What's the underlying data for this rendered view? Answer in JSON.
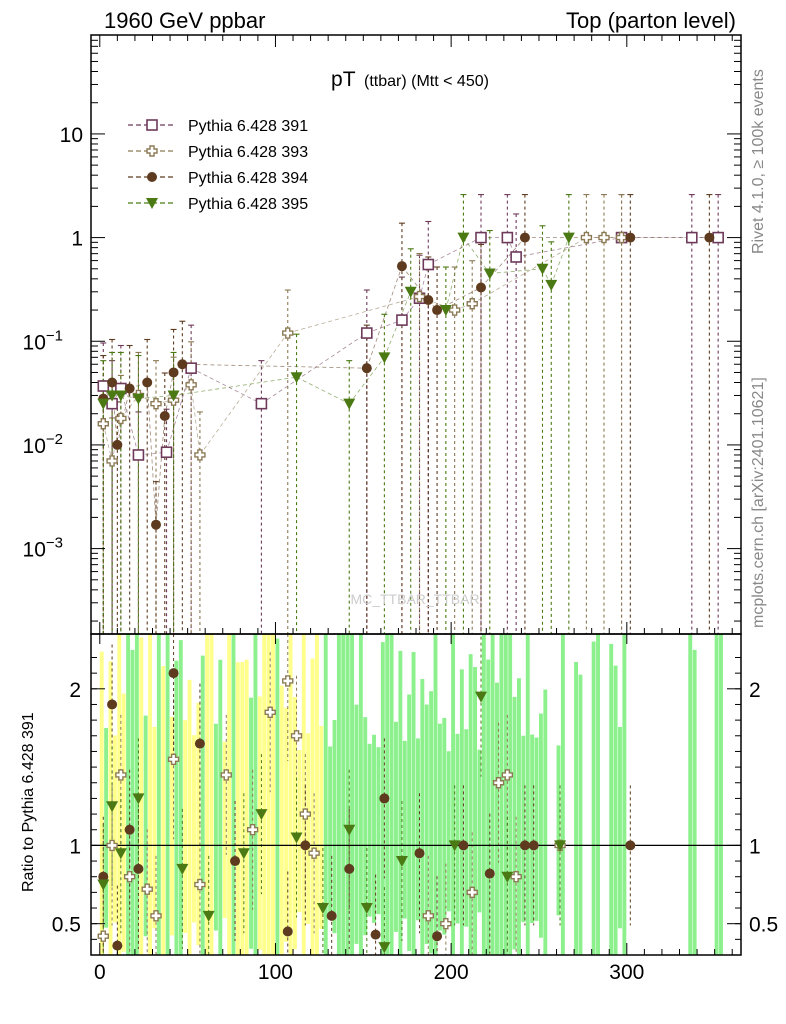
{
  "header": {
    "left": "1960 GeV ppbar",
    "right": "Top (parton level)"
  },
  "side": {
    "rivet": "Rivet 4.1.0, ≥ 100k events",
    "mcplots": "mcplots.cern.ch [arXiv:2401.10621]"
  },
  "watermark": "MC_TTBAR_TTBAR",
  "ratio_ylabel": "Ratio to Pythia 6.428 391",
  "colors": {
    "s391": "#6e3a5a",
    "s393": "#8c7a55",
    "s394": "#5e3b1f",
    "s395": "#4b7a14",
    "band_yellow": "#ffff8c",
    "band_green": "#8cf08c"
  },
  "chart_data": {
    "type": "scatter",
    "title_main": "pT",
    "title_sub": "(ttbar) (Mtt < 450)",
    "xlabel": "",
    "ylabel": "",
    "xlim": [
      -5,
      365
    ],
    "ylim": [
      0.00015,
      90
    ],
    "yscale": "log",
    "x_ticks": [
      0,
      100,
      200,
      300
    ],
    "y_ticks": [
      {
        "value": 0.001,
        "label": "10",
        "exp": "−3"
      },
      {
        "value": 0.01,
        "label": "10",
        "exp": "−2"
      },
      {
        "value": 0.1,
        "label": "10",
        "exp": "−1"
      },
      {
        "value": 1,
        "label": "1",
        "exp": ""
      },
      {
        "value": 10,
        "label": "10",
        "exp": ""
      }
    ],
    "ratio_ylim": [
      0.3,
      2.35
    ],
    "ratio_ticks": [
      0.5,
      1,
      2
    ],
    "series": [
      {
        "name": "Pythia 6.428 391",
        "marker": "open-square",
        "color": "#6e3a5a",
        "points": [
          [
            2,
            0.037
          ],
          [
            7,
            0.025
          ],
          [
            12,
            0.035
          ],
          [
            22,
            0.008
          ],
          [
            38,
            0.0085
          ],
          [
            52,
            0.055
          ],
          [
            92,
            0.025
          ],
          [
            152,
            0.12
          ],
          [
            172,
            0.16
          ],
          [
            182,
            0.26
          ],
          [
            187,
            0.55
          ],
          [
            217,
            1.0
          ],
          [
            232,
            1.0
          ],
          [
            237,
            0.65
          ],
          [
            297,
            1.0
          ],
          [
            337,
            1.0
          ],
          [
            352,
            1.0
          ]
        ]
      },
      {
        "name": "Pythia 6.428 393",
        "marker": "open-cross",
        "color": "#8c7a55",
        "points": [
          [
            2,
            0.016
          ],
          [
            7,
            0.007
          ],
          [
            12,
            0.018
          ],
          [
            22,
            0.03
          ],
          [
            32,
            0.025
          ],
          [
            42,
            0.027
          ],
          [
            52,
            0.038
          ],
          [
            57,
            0.008
          ],
          [
            107,
            0.12
          ],
          [
            182,
            0.27
          ],
          [
            202,
            0.2
          ],
          [
            212,
            0.23
          ],
          [
            277,
            1.0
          ],
          [
            287,
            1.0
          ],
          [
            297,
            1.0
          ]
        ]
      },
      {
        "name": "Pythia 6.428 394",
        "marker": "filled-circle",
        "color": "#5e3b1f",
        "points": [
          [
            2,
            0.028
          ],
          [
            7,
            0.04
          ],
          [
            10,
            0.01
          ],
          [
            17,
            0.035
          ],
          [
            27,
            0.04
          ],
          [
            32,
            0.0017
          ],
          [
            37,
            0.019
          ],
          [
            42,
            0.05
          ],
          [
            47,
            0.06
          ],
          [
            152,
            0.055
          ],
          [
            172,
            0.53
          ],
          [
            187,
            0.25
          ],
          [
            192,
            0.2
          ],
          [
            217,
            0.33
          ],
          [
            242,
            1.0
          ],
          [
            302,
            1.0
          ],
          [
            347,
            1.0
          ]
        ]
      },
      {
        "name": "Pythia 6.428 395",
        "marker": "filled-triangle",
        "color": "#4b7a14",
        "points": [
          [
            2,
            0.025
          ],
          [
            7,
            0.03
          ],
          [
            12,
            0.03
          ],
          [
            22,
            0.028
          ],
          [
            42,
            0.03
          ],
          [
            112,
            0.045
          ],
          [
            142,
            0.025
          ],
          [
            162,
            0.07
          ],
          [
            177,
            0.3
          ],
          [
            197,
            0.2
          ],
          [
            207,
            1.0
          ],
          [
            222,
            0.45
          ],
          [
            252,
            0.5
          ],
          [
            257,
            0.35
          ],
          [
            267,
            1.0
          ]
        ]
      }
    ],
    "ratio_series": [
      {
        "name": "Pythia 6.428 393",
        "points": [
          [
            2,
            0.42
          ],
          [
            7,
            1.0
          ],
          [
            12,
            1.45
          ],
          [
            17,
            0.8
          ],
          [
            27,
            0.72
          ],
          [
            32,
            0.55
          ],
          [
            42,
            1.55
          ],
          [
            57,
            0.75
          ],
          [
            72,
            1.45
          ],
          [
            87,
            1.1
          ],
          [
            97,
            1.85
          ],
          [
            107,
            2.05
          ],
          [
            112,
            1.7
          ],
          [
            117,
            1.2
          ],
          [
            122,
            0.95
          ],
          [
            187,
            0.55
          ],
          [
            197,
            0.5
          ],
          [
            212,
            0.7
          ],
          [
            227,
            1.4
          ],
          [
            232,
            1.45
          ],
          [
            237,
            0.8
          ],
          [
            262,
            1.0
          ]
        ]
      },
      {
        "name": "Pythia 6.428 394",
        "points": [
          [
            2,
            0.8
          ],
          [
            7,
            1.9
          ],
          [
            10,
            0.36
          ],
          [
            17,
            1.1
          ],
          [
            22,
            0.85
          ],
          [
            42,
            2.1
          ],
          [
            57,
            1.65
          ],
          [
            77,
            0.9
          ],
          [
            107,
            0.45
          ],
          [
            117,
            1.0
          ],
          [
            132,
            0.55
          ],
          [
            142,
            0.85
          ],
          [
            157,
            0.43
          ],
          [
            162,
            1.3
          ],
          [
            182,
            0.95
          ],
          [
            192,
            0.42
          ],
          [
            207,
            1.0
          ],
          [
            222,
            0.82
          ],
          [
            242,
            1.0
          ],
          [
            247,
            1.0
          ],
          [
            302,
            1.0
          ]
        ]
      },
      {
        "name": "Pythia 6.428 395",
        "points": [
          [
            2,
            0.75
          ],
          [
            7,
            1.25
          ],
          [
            12,
            0.95
          ],
          [
            22,
            1.3
          ],
          [
            47,
            0.85
          ],
          [
            62,
            0.55
          ],
          [
            82,
            0.95
          ],
          [
            92,
            1.2
          ],
          [
            112,
            1.05
          ],
          [
            127,
            0.6
          ],
          [
            142,
            1.1
          ],
          [
            152,
            0.6
          ],
          [
            162,
            0.35
          ],
          [
            172,
            0.9
          ],
          [
            202,
            1.0
          ],
          [
            217,
            1.95
          ],
          [
            232,
            0.8
          ],
          [
            262,
            1.0
          ]
        ]
      }
    ],
    "legend_position": "top-left"
  }
}
